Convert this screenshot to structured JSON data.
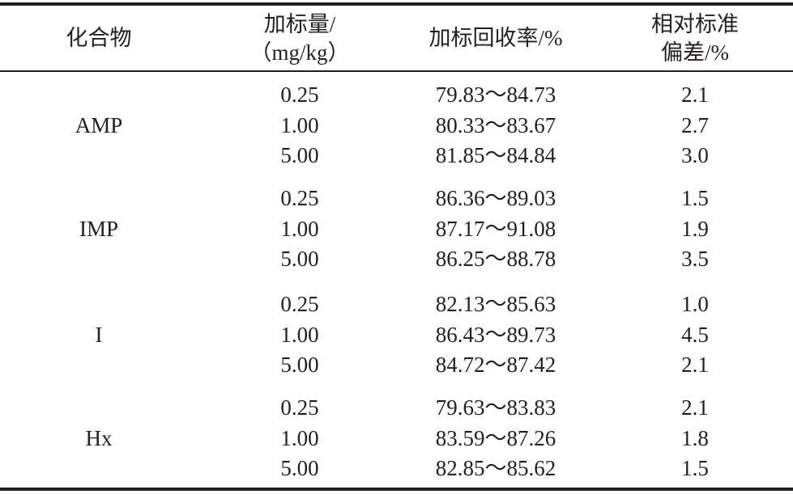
{
  "header": {
    "columns": [
      [
        "化合物"
      ],
      [
        "加标量/",
        "（mg/kg）"
      ],
      [
        "加标回收率/%"
      ],
      [
        "相对标准",
        "偏差/%"
      ]
    ]
  },
  "table": {
    "groups": [
      {
        "compound": "AMP",
        "rows": [
          [
            "0.25",
            "79.83～84.73",
            "2.1"
          ],
          [
            "1.00",
            "80.33～83.67",
            "2.7"
          ],
          [
            "5.00",
            "81.85～84.84",
            "3.0"
          ]
        ]
      },
      {
        "compound": "IMP",
        "rows": [
          [
            "0.25",
            "86.36～89.03",
            "1.5"
          ],
          [
            "1.00",
            "87.17～91.08",
            "1.9"
          ],
          [
            "5.00",
            "86.25～88.78",
            "3.5"
          ]
        ]
      },
      {
        "compound": "I",
        "rows": [
          [
            "0.25",
            "82.13～85.63",
            "1.0"
          ],
          [
            "1.00",
            "86.43～89.73",
            "4.5"
          ],
          [
            "5.00",
            "84.72～87.42",
            "2.1"
          ]
        ]
      },
      {
        "compound": "Hx",
        "rows": [
          [
            "0.25",
            "79.63～83.83",
            "2.1"
          ],
          [
            "1.00",
            "83.59～87.26",
            "1.8"
          ],
          [
            "5.00",
            "82.85～85.62",
            "1.5"
          ]
        ]
      }
    ]
  }
}
